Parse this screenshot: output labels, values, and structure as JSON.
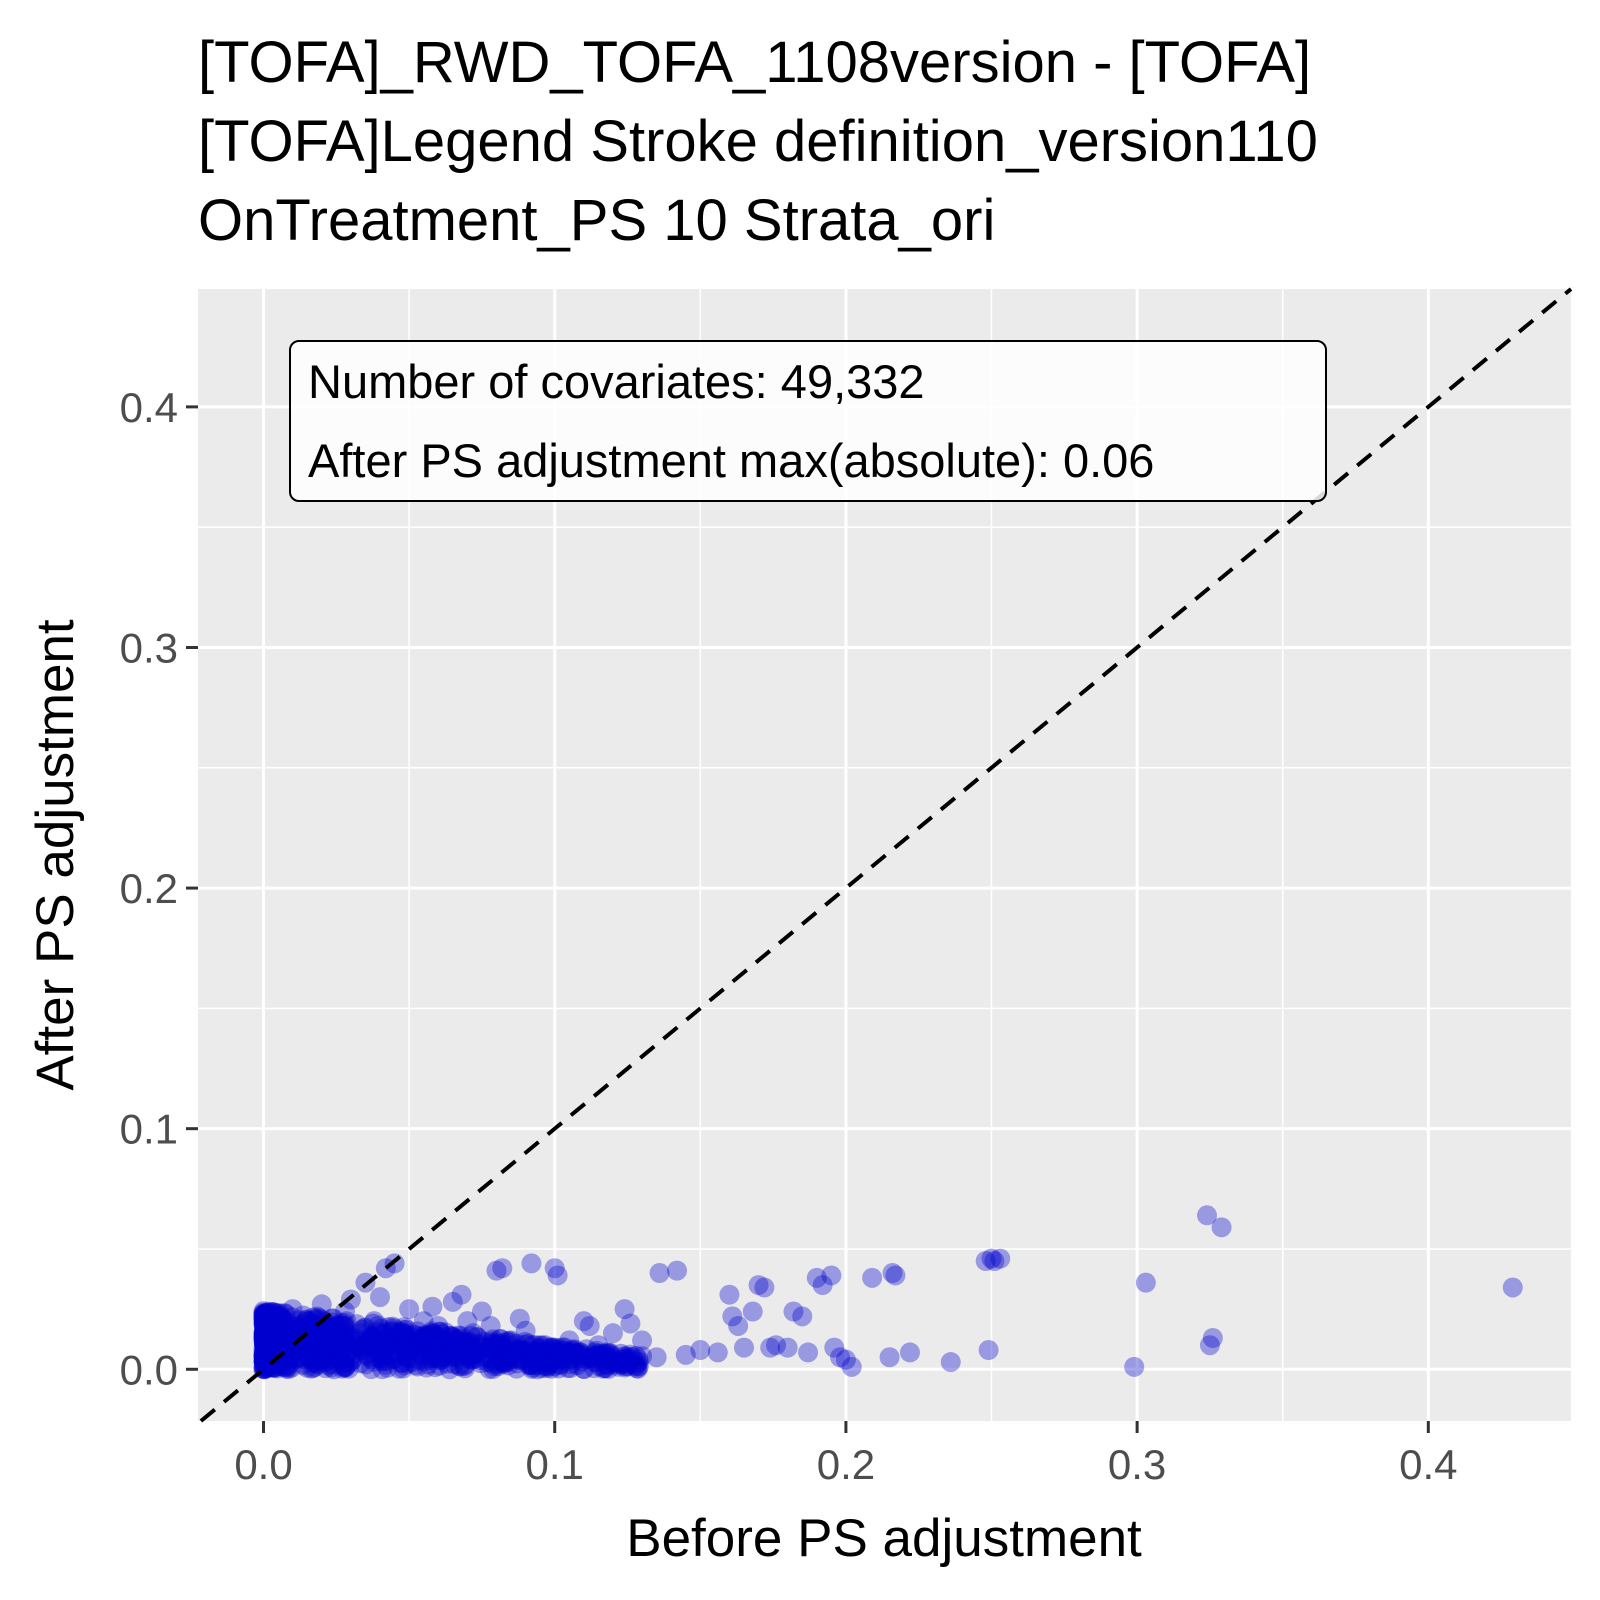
{
  "chart_data": {
    "type": "scatter",
    "title_lines": [
      "[TOFA]_RWD_TOFA_1108version - [TOFA]",
      "[TOFA]Legend Stroke definition_version110",
      "OnTreatment_PS 10 Strata_ori"
    ],
    "xlabel": "Before PS adjustment",
    "ylabel": "After PS adjustment",
    "xlim": [
      -0.0225,
      0.449
    ],
    "ylim": [
      -0.0215,
      0.449
    ],
    "x_ticks": [
      0.0,
      0.1,
      0.2,
      0.3,
      0.4
    ],
    "x_tick_labels": [
      "0.0",
      "0.1",
      "0.2",
      "0.3",
      "0.4"
    ],
    "y_ticks": [
      0.0,
      0.1,
      0.2,
      0.3,
      0.4
    ],
    "y_tick_labels": [
      "0.0",
      "0.1",
      "0.2",
      "0.3",
      "0.4"
    ],
    "grid": true,
    "reference_line": {
      "slope": 1,
      "intercept": 0,
      "style": "dashed",
      "color": "#000000"
    },
    "annotation_lines": [
      "Number of covariates: 49,332",
      "After PS adjustment max(absolute): 0.06"
    ],
    "colors": {
      "point": "#0000CD",
      "panel": "#EBEBEB",
      "grid": "#FFFFFF"
    },
    "series": [
      {
        "points": [
          [
            0.0,
            0.0
          ],
          [
            0.002,
            0.01
          ],
          [
            0.005,
            0.02
          ],
          [
            0.008,
            0.015
          ],
          [
            0.01,
            0.025
          ],
          [
            0.012,
            0.005
          ],
          [
            0.015,
            0.02
          ],
          [
            0.018,
            0.012
          ],
          [
            0.02,
            0.027
          ],
          [
            0.022,
            0.008
          ],
          [
            0.025,
            0.018
          ],
          [
            0.028,
            0.024
          ],
          [
            0.03,
            0.029
          ],
          [
            0.032,
            0.01
          ],
          [
            0.035,
            0.036
          ],
          [
            0.038,
            0.02
          ],
          [
            0.04,
            0.03
          ],
          [
            0.042,
            0.042
          ],
          [
            0.045,
            0.044
          ],
          [
            0.048,
            0.015
          ],
          [
            0.05,
            0.025
          ],
          [
            0.055,
            0.02
          ],
          [
            0.058,
            0.026
          ],
          [
            0.06,
            0.018
          ],
          [
            0.062,
            0.012
          ],
          [
            0.065,
            0.028
          ],
          [
            0.068,
            0.031
          ],
          [
            0.07,
            0.02
          ],
          [
            0.072,
            0.015
          ],
          [
            0.075,
            0.024
          ],
          [
            0.078,
            0.018
          ],
          [
            0.08,
            0.041
          ],
          [
            0.082,
            0.042
          ],
          [
            0.085,
            0.012
          ],
          [
            0.088,
            0.021
          ],
          [
            0.09,
            0.016
          ],
          [
            0.092,
            0.044
          ],
          [
            0.095,
            0.01
          ],
          [
            0.1,
            0.042
          ],
          [
            0.101,
            0.039
          ],
          [
            0.105,
            0.012
          ],
          [
            0.11,
            0.02
          ],
          [
            0.112,
            0.018
          ],
          [
            0.115,
            0.01
          ],
          [
            0.12,
            0.015
          ],
          [
            0.124,
            0.025
          ],
          [
            0.126,
            0.019
          ],
          [
            0.13,
            0.012
          ],
          [
            0.135,
            0.005
          ],
          [
            0.136,
            0.04
          ],
          [
            0.142,
            0.041
          ],
          [
            0.145,
            0.006
          ],
          [
            0.15,
            0.008
          ],
          [
            0.156,
            0.007
          ],
          [
            0.16,
            0.031
          ],
          [
            0.161,
            0.022
          ],
          [
            0.163,
            0.018
          ],
          [
            0.165,
            0.009
          ],
          [
            0.168,
            0.024
          ],
          [
            0.17,
            0.035
          ],
          [
            0.172,
            0.034
          ],
          [
            0.174,
            0.009
          ],
          [
            0.176,
            0.01
          ],
          [
            0.18,
            0.009
          ],
          [
            0.182,
            0.024
          ],
          [
            0.185,
            0.022
          ],
          [
            0.187,
            0.007
          ],
          [
            0.19,
            0.038
          ],
          [
            0.192,
            0.035
          ],
          [
            0.195,
            0.039
          ],
          [
            0.196,
            0.009
          ],
          [
            0.198,
            0.005
          ],
          [
            0.2,
            0.004
          ],
          [
            0.202,
            0.001
          ],
          [
            0.209,
            0.038
          ],
          [
            0.216,
            0.04
          ],
          [
            0.217,
            0.039
          ],
          [
            0.215,
            0.005
          ],
          [
            0.222,
            0.007
          ],
          [
            0.236,
            0.003
          ],
          [
            0.248,
            0.045
          ],
          [
            0.25,
            0.046
          ],
          [
            0.251,
            0.045
          ],
          [
            0.253,
            0.046
          ],
          [
            0.249,
            0.008
          ],
          [
            0.299,
            0.001
          ],
          [
            0.303,
            0.036
          ],
          [
            0.324,
            0.064
          ],
          [
            0.329,
            0.059
          ],
          [
            0.326,
            0.013
          ],
          [
            0.325,
            0.01
          ],
          [
            0.429,
            0.034
          ]
        ]
      }
    ]
  }
}
